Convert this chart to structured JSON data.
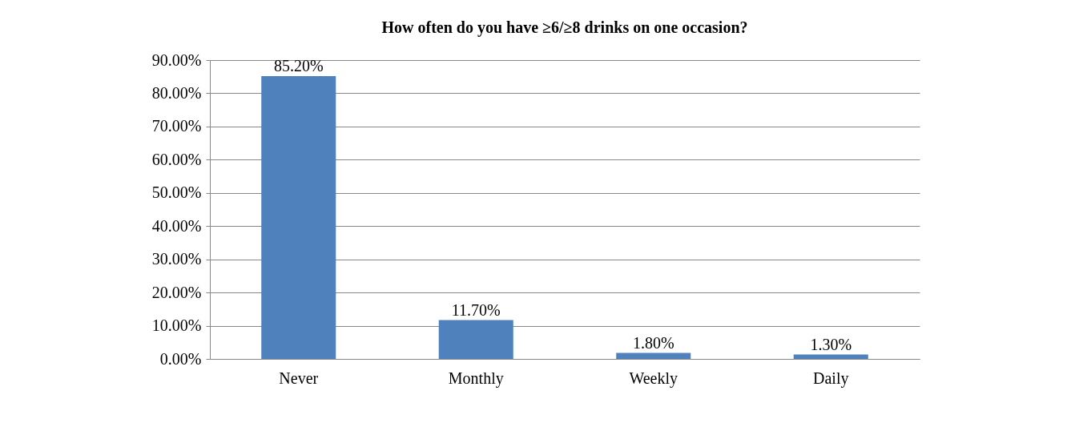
{
  "chart_data": {
    "type": "bar",
    "title": "How often do you have ≥6/≥8 drinks on one occasion?",
    "categories": [
      "Never",
      "Monthly",
      "Weekly",
      "Daily"
    ],
    "values": [
      85.2,
      11.7,
      1.8,
      1.3
    ],
    "value_labels": [
      "85.20%",
      "11.70%",
      "1.80%",
      "1.30%"
    ],
    "color": "#4f81bd",
    "ylim": [
      0,
      90
    ],
    "yticks": [
      {
        "value": 0,
        "label": "0.00%"
      },
      {
        "value": 10,
        "label": "10.00%"
      },
      {
        "value": 20,
        "label": "20.00%"
      },
      {
        "value": 30,
        "label": "30.00%"
      },
      {
        "value": 40,
        "label": "40.00%"
      },
      {
        "value": 50,
        "label": "50.00%"
      },
      {
        "value": 60,
        "label": "60.00%"
      },
      {
        "value": 70,
        "label": "70.00%"
      },
      {
        "value": 80,
        "label": "80.00%"
      },
      {
        "value": 90,
        "label": "90.00%"
      }
    ],
    "grid": "y"
  }
}
